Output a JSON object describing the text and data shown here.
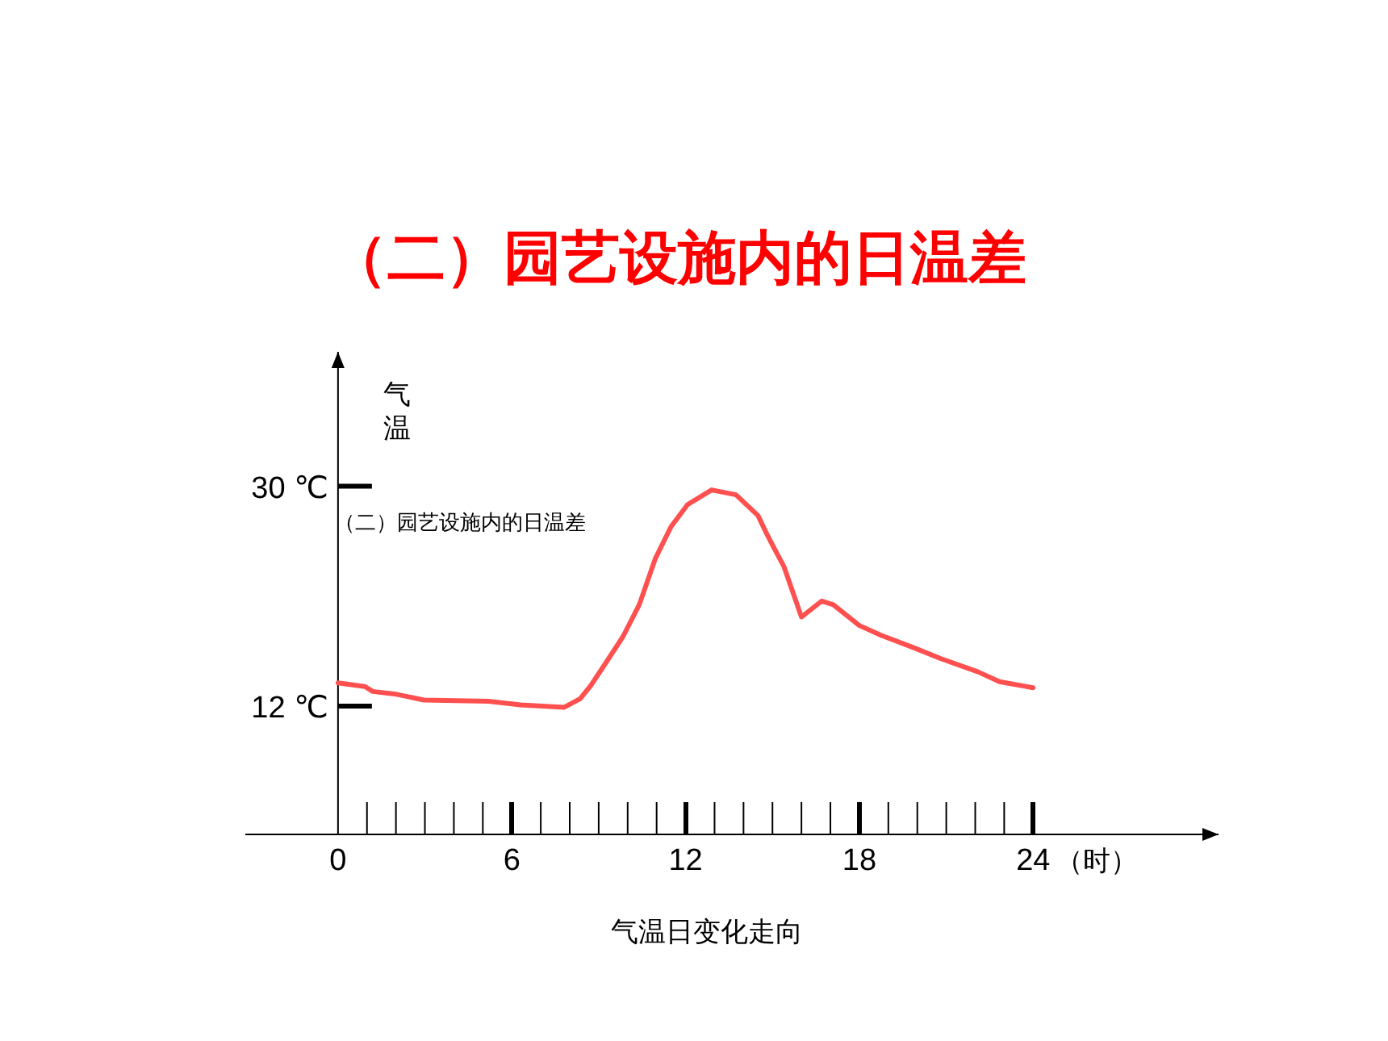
{
  "chart_data": {
    "type": "line",
    "title": "（二）园艺设施内的日温差",
    "xlabel": "（时）",
    "ylabel": "气温",
    "annotations": [
      "（二）园艺设施内的日温差",
      "气温日变化走向"
    ],
    "x": [
      0,
      0.93,
      1.2,
      1.95,
      2.97,
      5.2,
      6.3,
      7.8,
      8.36,
      8.73,
      9.29,
      9.84,
      10.4,
      10.96,
      11.5,
      12.07,
      12.9,
      13.74,
      14.5,
      14.76,
      15.04,
      15.4,
      16.0,
      16.7,
      17.1,
      18.0,
      18.75,
      19.86,
      20.8,
      22.1,
      22.84,
      24.0
    ],
    "series": [
      {
        "color": "#ff5050",
        "values": [
          13.9,
          13.6,
          13.2,
          13.0,
          12.5,
          12.4,
          12.1,
          11.9,
          12.6,
          13.7,
          15.7,
          17.7,
          20.3,
          24.1,
          26.7,
          28.5,
          29.7,
          29.3,
          27.6,
          26.3,
          25.0,
          23.4,
          19.3,
          20.6,
          20.3,
          18.6,
          17.8,
          16.8,
          15.9,
          14.8,
          14.0,
          13.5
        ]
      }
    ],
    "xlim": [
      -3.2,
      30.4
    ],
    "ylim": [
      1.5,
      41
    ],
    "xticks": [
      0,
      6,
      12,
      18,
      24
    ],
    "yticks": [
      {
        "value": 30,
        "label": "30 ℃"
      },
      {
        "value": 12,
        "label": "12 ℃"
      }
    ],
    "marker": "none",
    "line_style": "solid",
    "grid": false
  }
}
